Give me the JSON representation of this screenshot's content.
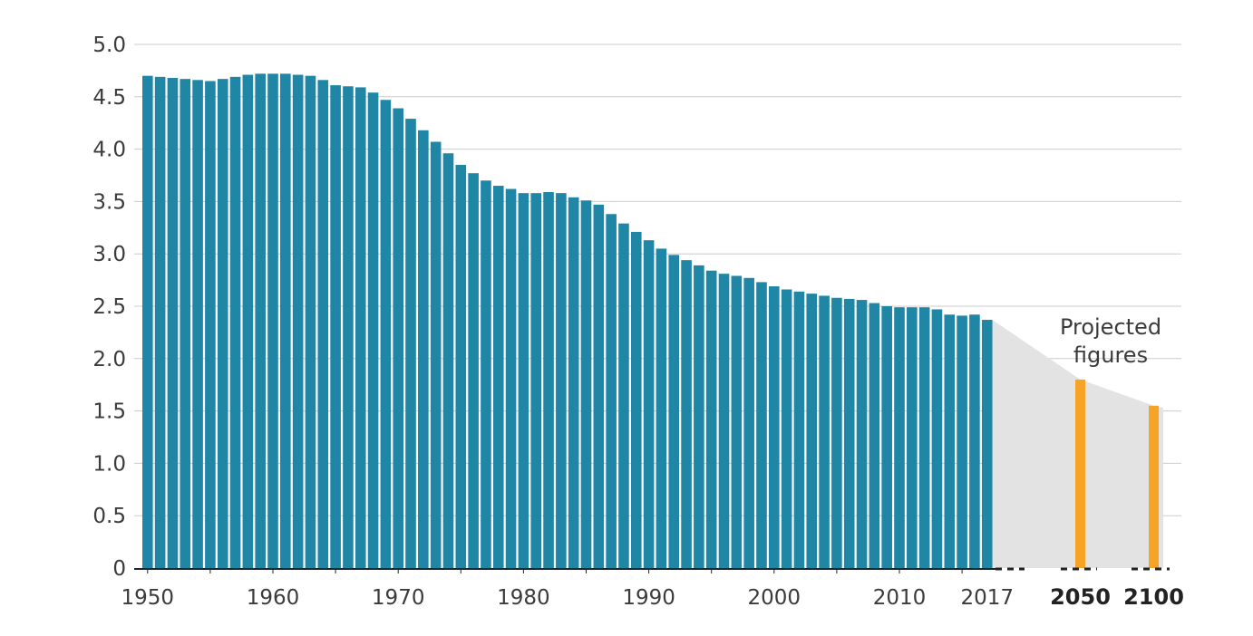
{
  "chart_data": {
    "type": "bar",
    "title": "",
    "xlabel": "",
    "ylabel": "",
    "ylim": [
      0,
      5
    ],
    "yticks": [
      0,
      0.5,
      1,
      1.5,
      2,
      2.5,
      3,
      3.5,
      4,
      4.5,
      5
    ],
    "ytick_labels": [
      "0",
      "0.5",
      "1.0",
      "1.5",
      "2.0",
      "2.5",
      "3.0",
      "3.5",
      "4.0",
      "4.5",
      "5.0"
    ],
    "xtick_labels": [
      "1950",
      "1960",
      "1970",
      "1980",
      "1990",
      "2000",
      "2010",
      "2017"
    ],
    "projected_tick_labels": [
      "2050",
      "2100"
    ],
    "grid": "horizontal",
    "colors": {
      "historical": "#1f87a5",
      "projected": "#f7a325",
      "projection_band": "#e3e3e3",
      "grid": "#cccccc",
      "axis": "#222222"
    },
    "annotation": "Projected figures",
    "series": [
      {
        "x": [
          1950,
          1951,
          1952,
          1953,
          1954,
          1955,
          1956,
          1957,
          1958,
          1959,
          1960,
          1961,
          1962,
          1963,
          1964,
          1965,
          1966,
          1967,
          1968,
          1969,
          1970,
          1971,
          1972,
          1973,
          1974,
          1975,
          1976,
          1977,
          1978,
          1979,
          1980,
          1981,
          1982,
          1983,
          1984,
          1985,
          1986,
          1987,
          1988,
          1989,
          1990,
          1991,
          1992,
          1993,
          1994,
          1995,
          1996,
          1997,
          1998,
          1999,
          2000,
          2001,
          2002,
          2003,
          2004,
          2005,
          2006,
          2007,
          2008,
          2009,
          2010,
          2011,
          2012,
          2013,
          2014,
          2015,
          2016,
          2017
        ],
        "values": [
          4.7,
          4.69,
          4.68,
          4.67,
          4.66,
          4.65,
          4.67,
          4.69,
          4.71,
          4.72,
          4.72,
          4.72,
          4.71,
          4.7,
          4.66,
          4.61,
          4.6,
          4.59,
          4.54,
          4.47,
          4.39,
          4.29,
          4.18,
          4.07,
          3.96,
          3.85,
          3.77,
          3.7,
          3.65,
          3.62,
          3.58,
          3.58,
          3.59,
          3.58,
          3.54,
          3.51,
          3.47,
          3.38,
          3.29,
          3.21,
          3.13,
          3.05,
          2.99,
          2.94,
          2.89,
          2.84,
          2.81,
          2.79,
          2.77,
          2.73,
          2.69,
          2.66,
          2.64,
          2.62,
          2.6,
          2.58,
          2.57,
          2.56,
          2.53,
          2.5,
          2.49,
          2.49,
          2.49,
          2.47,
          2.42,
          2.41,
          2.42,
          2.37
        ]
      },
      {
        "x": [
          2050,
          2100
        ],
        "values": [
          1.8,
          1.55
        ]
      }
    ]
  }
}
